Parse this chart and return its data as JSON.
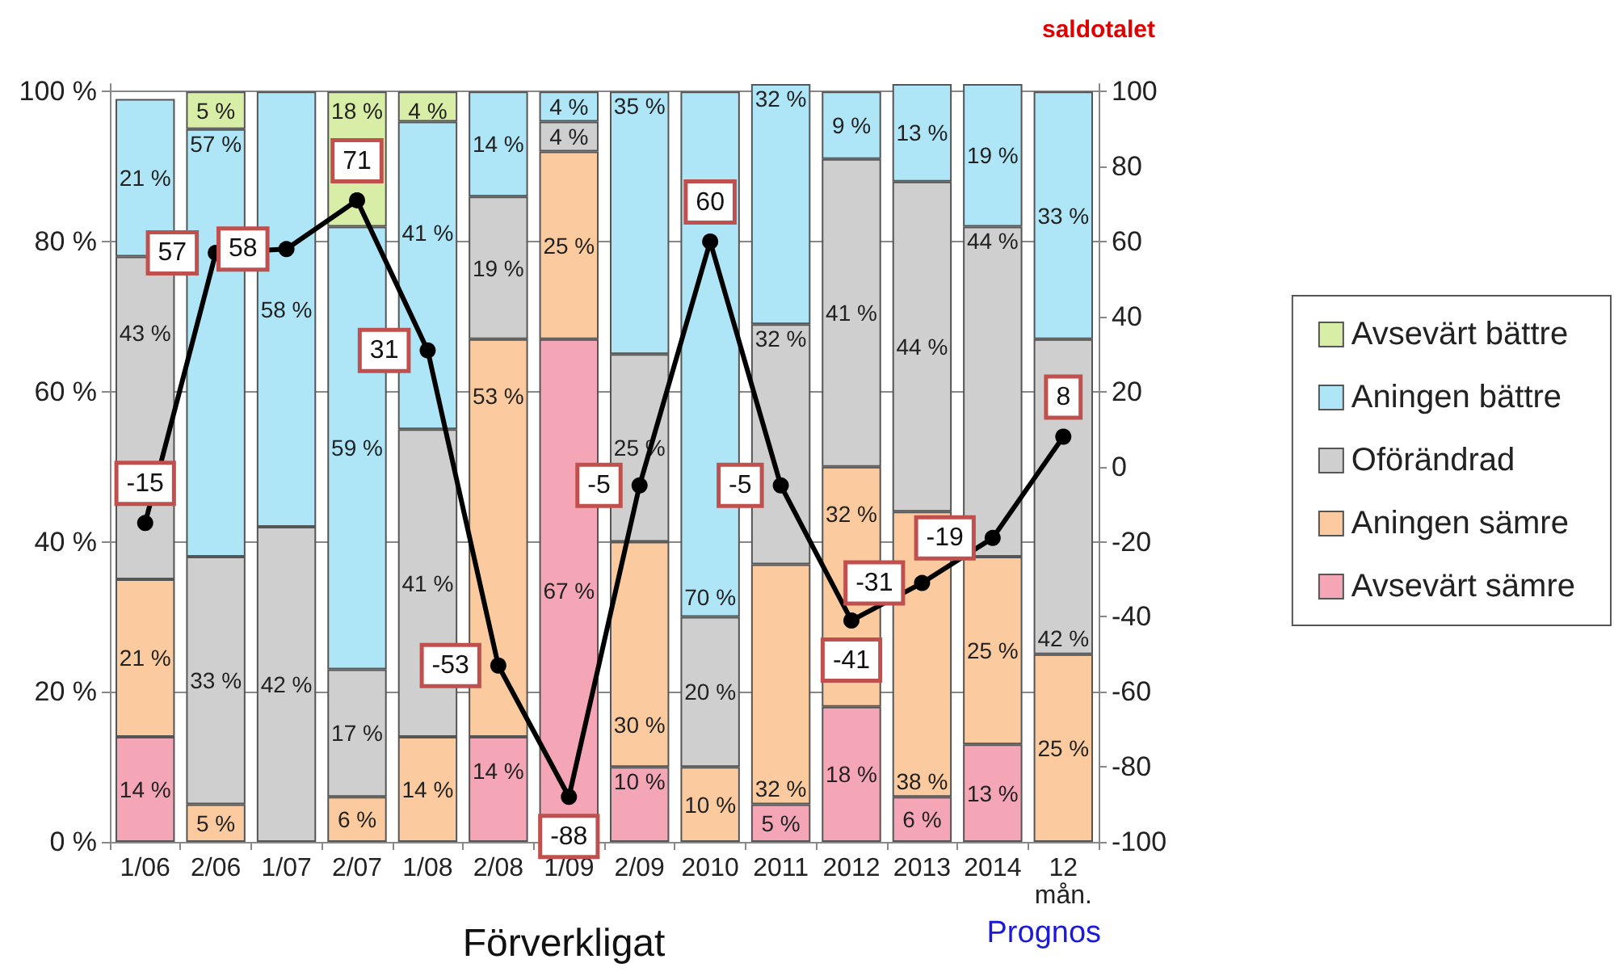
{
  "chart_data": {
    "type": "bar",
    "stacked": true,
    "y2label": "saldotalet",
    "categories": [
      "1/06",
      "2/06",
      "1/07",
      "2/07",
      "1/08",
      "2/08",
      "1/09",
      "2/09",
      "2010",
      "2011",
      "2012",
      "2013",
      "2014",
      "12\nmån."
    ],
    "series": [
      {
        "name": "Avsevärt sämre",
        "color": "#f5a6b6",
        "values": [
          14,
          null,
          null,
          null,
          null,
          14,
          67,
          10,
          null,
          5,
          18,
          6,
          13,
          null
        ],
        "value_labels": [
          "14 %",
          null,
          null,
          null,
          null,
          "14 %",
          "67 %",
          "10 %",
          null,
          "5 %",
          "18 %",
          "6 %",
          "13 %",
          null
        ]
      },
      {
        "name": "Aningen sämre",
        "color": "#fbcb9f",
        "values": [
          21,
          5,
          null,
          6,
          14,
          53,
          25,
          30,
          10,
          32,
          32,
          38,
          25,
          25
        ],
        "value_labels": [
          "21 %",
          "5 %",
          null,
          "6 %",
          "14 %",
          "53 %",
          "25 %",
          "30 %",
          "10 %",
          "32 %",
          "32 %",
          "38 %",
          "25 %",
          "25 %"
        ]
      },
      {
        "name": "Oförändrad",
        "color": "#cfcfcf",
        "values": [
          43,
          33,
          42,
          17,
          41,
          19,
          4,
          25,
          20,
          32,
          41,
          44,
          44,
          42
        ],
        "value_labels": [
          "43 %",
          "33 %",
          "42 %",
          "17 %",
          "41 %",
          "19 %",
          "4 %",
          "25 %",
          "20 %",
          "32 %",
          "41 %",
          "44 %",
          "44 %",
          "42 %"
        ]
      },
      {
        "name": "Aningen bättre",
        "color": "#aee6f7",
        "values": [
          21,
          57,
          58,
          59,
          41,
          14,
          4,
          35,
          70,
          32,
          9,
          13,
          19,
          33
        ],
        "value_labels": [
          "21 %",
          "57 %",
          "58 %",
          "59 %",
          "41 %",
          "14 %",
          "4 %",
          "35 %",
          "70 %",
          "32 %",
          "9 %",
          "13 %",
          "19 %",
          "33 %"
        ]
      },
      {
        "name": "Avsevärt bättre",
        "color": "#d8eea6",
        "values": [
          null,
          5,
          null,
          18,
          4,
          null,
          null,
          null,
          null,
          null,
          null,
          null,
          null,
          null
        ],
        "value_labels": [
          null,
          "5 %",
          null,
          "18 %",
          "4 %",
          null,
          null,
          null,
          null,
          null,
          null,
          null,
          null,
          null
        ]
      },
      {
        "type": "line",
        "axis": "y2",
        "color": "#000000",
        "marker": "circle",
        "line_style": "solid",
        "values": [
          -15,
          57,
          58,
          71,
          31,
          -53,
          -88,
          -5,
          60,
          -5,
          -41,
          -31,
          -19,
          8
        ],
        "value_labels": [
          "-15",
          "57",
          "58",
          "71",
          "31",
          "-53",
          "-88",
          "-5",
          "60",
          "-5",
          "-41",
          "-31",
          "-19",
          "8"
        ]
      }
    ],
    "ylim": [
      0,
      101
    ],
    "yticks": [
      {
        "value": 0,
        "label": "0 %"
      },
      {
        "value": 20,
        "label": "20 %"
      },
      {
        "value": 40,
        "label": "40 %"
      },
      {
        "value": 60,
        "label": "60 %"
      },
      {
        "value": 80,
        "label": "80 %"
      },
      {
        "value": 100,
        "label": "100 %"
      }
    ],
    "y2lim": [
      -100,
      102
    ],
    "y2ticks": [
      -100,
      -80,
      -60,
      -40,
      -20,
      0,
      20,
      40,
      60,
      80,
      100
    ],
    "grid": "y",
    "legend": "right",
    "annotations": [
      "Förverkligat",
      "Prognos"
    ]
  }
}
